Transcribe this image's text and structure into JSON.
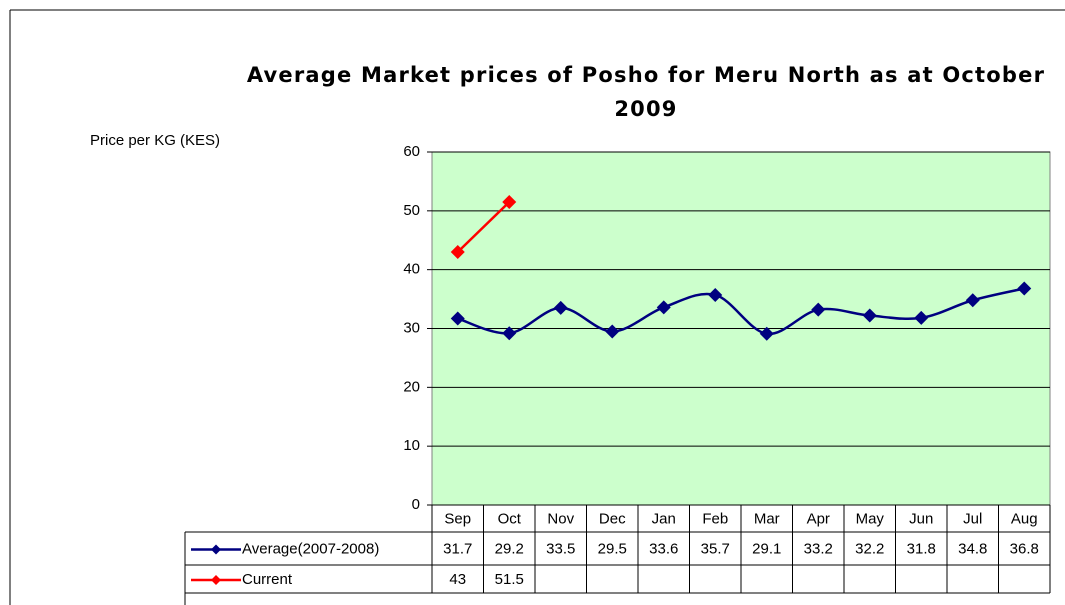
{
  "chart_data": {
    "type": "line",
    "title": "Average Market prices of Posho for Meru North as at October 2009",
    "y_label": "Price per KG (KES)",
    "categories": [
      "Sep",
      "Oct",
      "Nov",
      "Dec",
      "Jan",
      "Feb",
      "Mar",
      "Apr",
      "May",
      "Jun",
      "Jul",
      "Aug"
    ],
    "series": [
      {
        "name": "Average(2007-2008)",
        "color": "#000080",
        "values": [
          31.7,
          29.2,
          33.5,
          29.5,
          33.6,
          35.7,
          29.1,
          33.2,
          32.2,
          31.8,
          34.8,
          36.8
        ]
      },
      {
        "name": "Current",
        "color": "#ff0000",
        "values": [
          43,
          51.5,
          null,
          null,
          null,
          null,
          null,
          null,
          null,
          null,
          null,
          null
        ]
      }
    ],
    "ylim": [
      0,
      60
    ],
    "yticks": [
      0,
      10,
      20,
      30,
      40,
      50,
      60
    ],
    "grid": true,
    "plot_background": "#ccffcc"
  }
}
